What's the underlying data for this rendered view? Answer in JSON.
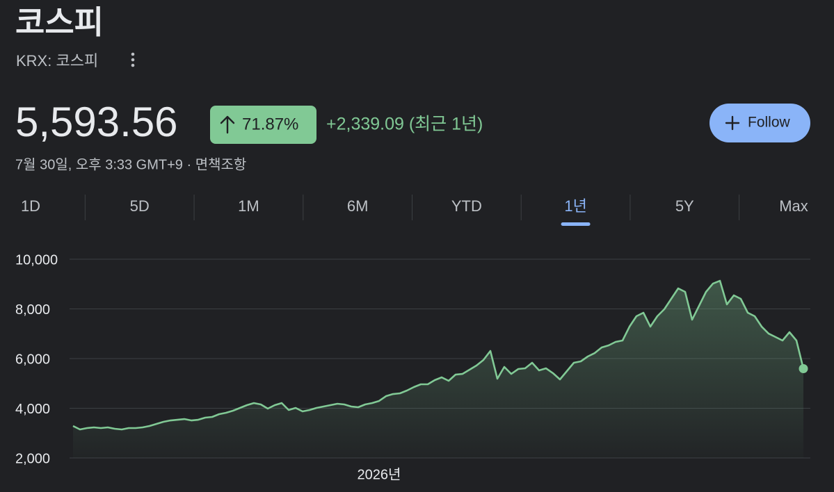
{
  "header": {
    "title": "코스피",
    "subtitle": "KRX: 코스피",
    "price": "5,593.56",
    "change_percent": "71.87%",
    "change_value": "+2,339.09 (최근 1년)",
    "timestamp": "7월 30일, 오후 3:33 GMT+9 · 면책조항",
    "follow_button": "Follow"
  },
  "range_tabs": {
    "tabs": [
      "1D",
      "5D",
      "1M",
      "6M",
      "YTD",
      "1년",
      "5Y",
      "Max"
    ],
    "selected": "1년"
  },
  "chart_data": {
    "type": "line",
    "categories": [
      null,
      null,
      null,
      null,
      null,
      null,
      null,
      null,
      null,
      null,
      null,
      null,
      null,
      null,
      null,
      null,
      null,
      null,
      null,
      null,
      null,
      null,
      null,
      null,
      null,
      null,
      null,
      null,
      null,
      null,
      null,
      null,
      null,
      null,
      null,
      null,
      null,
      null,
      null,
      null,
      null,
      null,
      null,
      null,
      "2026년",
      null,
      null,
      null,
      null,
      null,
      null,
      null,
      null,
      null,
      null,
      null,
      null,
      null,
      null,
      null,
      null,
      null,
      null,
      null,
      null,
      null,
      null,
      null,
      null,
      null,
      null,
      null,
      null,
      null,
      null,
      null,
      null,
      null,
      null,
      null,
      null,
      null,
      null,
      null,
      null,
      null,
      null,
      null,
      null,
      null,
      null,
      null,
      null,
      null,
      null,
      null,
      null,
      null,
      null,
      null,
      null,
      null,
      null,
      null,
      null,
      null
    ],
    "series": [
      {
        "color": "#81c995",
        "values": [
          3287,
          3147,
          3203,
          3231,
          3203,
          3231,
          3175,
          3147,
          3203,
          3203,
          3231,
          3287,
          3371,
          3454,
          3510,
          3538,
          3566,
          3510,
          3538,
          3622,
          3650,
          3762,
          3818,
          3902,
          4014,
          4126,
          4210,
          4154,
          3986,
          4126,
          4210,
          3930,
          4014,
          3874,
          3930,
          4014,
          4070,
          4126,
          4182,
          4154,
          4070,
          4042,
          4154,
          4210,
          4294,
          4489,
          4573,
          4601,
          4713,
          4853,
          4965,
          4965,
          5133,
          5245,
          5105,
          5356,
          5384,
          5552,
          5720,
          5944,
          6307,
          5189,
          5664,
          5384,
          5580,
          5608,
          5832,
          5524,
          5608,
          5412,
          5161,
          5496,
          5832,
          5888,
          6084,
          6223,
          6447,
          6531,
          6671,
          6727,
          7286,
          7706,
          7846,
          7286,
          7706,
          7986,
          8405,
          8825,
          8685,
          7566,
          8125,
          8685,
          9020,
          9132,
          8181,
          8545,
          8405,
          7846,
          7706,
          7286,
          7006,
          6867,
          6727,
          7063,
          6727,
          5594
        ]
      }
    ],
    "ylim": [
      2000,
      10000
    ],
    "yticks": [
      {
        "value": 2000,
        "label": "2,000"
      },
      {
        "value": 4000,
        "label": "4,000"
      },
      {
        "value": 6000,
        "label": "6,000"
      },
      {
        "value": 8000,
        "label": "8,000"
      },
      {
        "value": 10000,
        "label": "10,000"
      }
    ],
    "grid": true
  }
}
